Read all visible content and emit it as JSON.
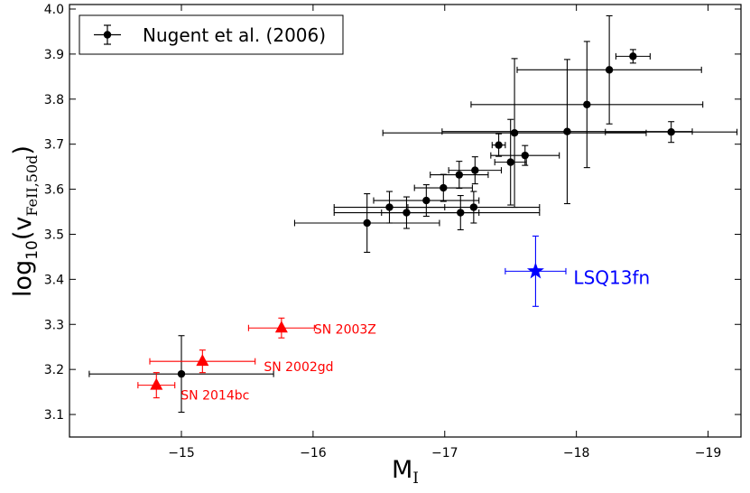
{
  "chart_data": {
    "type": "scatter",
    "xlabel": "M",
    "xlabel_sub": "I",
    "ylabel_prefix": "log",
    "ylabel_log_sub": "10",
    "ylabel_v": "v",
    "ylabel_v_sub": "FeII,50d",
    "xlim": [
      -14.15,
      -19.25
    ],
    "ylim": [
      3.05,
      4.01
    ],
    "xticks": [
      -15,
      -16,
      -17,
      -18,
      -19
    ],
    "xtick_labels": [
      "−15",
      "−16",
      "−17",
      "−18",
      "−19"
    ],
    "yticks": [
      3.1,
      3.2,
      3.3,
      3.4,
      3.5,
      3.6,
      3.7,
      3.8,
      3.9,
      4.0
    ],
    "ytick_labels": [
      "3.1",
      "3.2",
      "3.3",
      "3.4",
      "3.5",
      "3.6",
      "3.7",
      "3.8",
      "3.9",
      "4.0"
    ],
    "legend": {
      "label": "Nugent et al. (2006)",
      "position": "top-left"
    },
    "colors": {
      "nugent": "#000000",
      "sn": "#ff0000",
      "lsq": "#0000ff"
    },
    "series": [
      {
        "name": "Nugent et al. (2006)",
        "marker": "circle",
        "points": [
          {
            "x": -18.43,
            "y": 3.895,
            "xerr": 0.13,
            "yerr": 0.015
          },
          {
            "x": -18.25,
            "y": 3.865,
            "xerr": 0.7,
            "yerr": 0.12
          },
          {
            "x": -18.08,
            "y": 3.788,
            "xerr": 0.88,
            "yerr": 0.14
          },
          {
            "x": -17.93,
            "y": 3.728,
            "xerr": 0.95,
            "yerr": 0.16
          },
          {
            "x": -18.72,
            "y": 3.727,
            "xerr": 0.5,
            "yerr": 0.023
          },
          {
            "x": -17.53,
            "y": 3.725,
            "xerr": 1.0,
            "yerr": 0.165
          },
          {
            "x": -17.41,
            "y": 3.698,
            "xerr": 0.05,
            "yerr": 0.025
          },
          {
            "x": -17.61,
            "y": 3.675,
            "xerr": 0.26,
            "yerr": 0.022
          },
          {
            "x": -17.5,
            "y": 3.66,
            "xerr": 0.12,
            "yerr": 0.095
          },
          {
            "x": -17.23,
            "y": 3.642,
            "xerr": 0.2,
            "yerr": 0.03
          },
          {
            "x": -17.11,
            "y": 3.632,
            "xerr": 0.22,
            "yerr": 0.03
          },
          {
            "x": -16.99,
            "y": 3.603,
            "xerr": 0.22,
            "yerr": 0.03
          },
          {
            "x": -16.86,
            "y": 3.575,
            "xerr": 0.4,
            "yerr": 0.035
          },
          {
            "x": -16.58,
            "y": 3.56,
            "xerr": 0.42,
            "yerr": 0.035
          },
          {
            "x": -17.22,
            "y": 3.56,
            "xerr": 0.5,
            "yerr": 0.035
          },
          {
            "x": -16.71,
            "y": 3.548,
            "xerr": 0.55,
            "yerr": 0.035
          },
          {
            "x": -17.12,
            "y": 3.548,
            "xerr": 0.6,
            "yerr": 0.038
          },
          {
            "x": -16.41,
            "y": 3.525,
            "xerr": 0.55,
            "yerr": 0.065
          },
          {
            "x": -15.0,
            "y": 3.19,
            "xerr": 0.7,
            "yerr": 0.085
          }
        ]
      },
      {
        "name": "SN",
        "marker": "triangle",
        "points": [
          {
            "x": -15.76,
            "y": 3.292,
            "xerr": 0.25,
            "yerr": 0.022,
            "label": "SN 2003Z"
          },
          {
            "x": -15.16,
            "y": 3.218,
            "xerr": 0.4,
            "yerr": 0.025,
            "label": "SN 2002gd"
          },
          {
            "x": -14.81,
            "y": 3.165,
            "xerr": 0.14,
            "yerr": 0.028,
            "label": "SN 2014bc"
          }
        ]
      },
      {
        "name": "LSQ13fn",
        "marker": "star",
        "points": [
          {
            "x": -17.69,
            "y": 3.418,
            "xerr": 0.23,
            "yerr": 0.078,
            "label": "LSQ13fn"
          }
        ]
      }
    ]
  }
}
